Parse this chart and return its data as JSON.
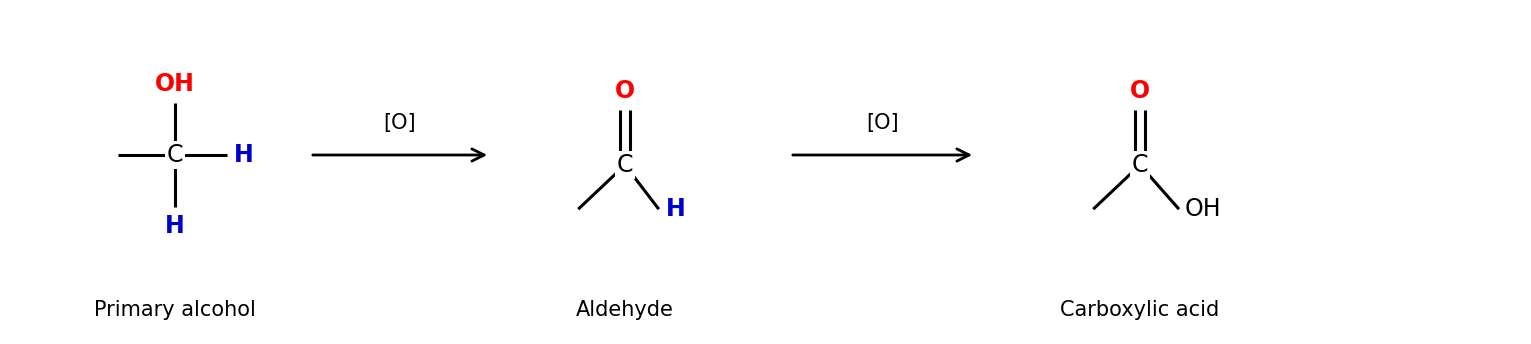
{
  "bg_color": "#ffffff",
  "black": "#000000",
  "red": "#ff0000",
  "blue": "#0000cc",
  "font_size_atom": 17,
  "font_size_label": 15,
  "font_size_arrow_label": 15,
  "label1": "Primary alcohol",
  "label2": "Aldehyde",
  "label3": "Carboxylic acid",
  "arrow1_label": "[O]",
  "arrow2_label": "[O]",
  "figwidth": 15.31,
  "figheight": 3.44,
  "dpi": 100
}
